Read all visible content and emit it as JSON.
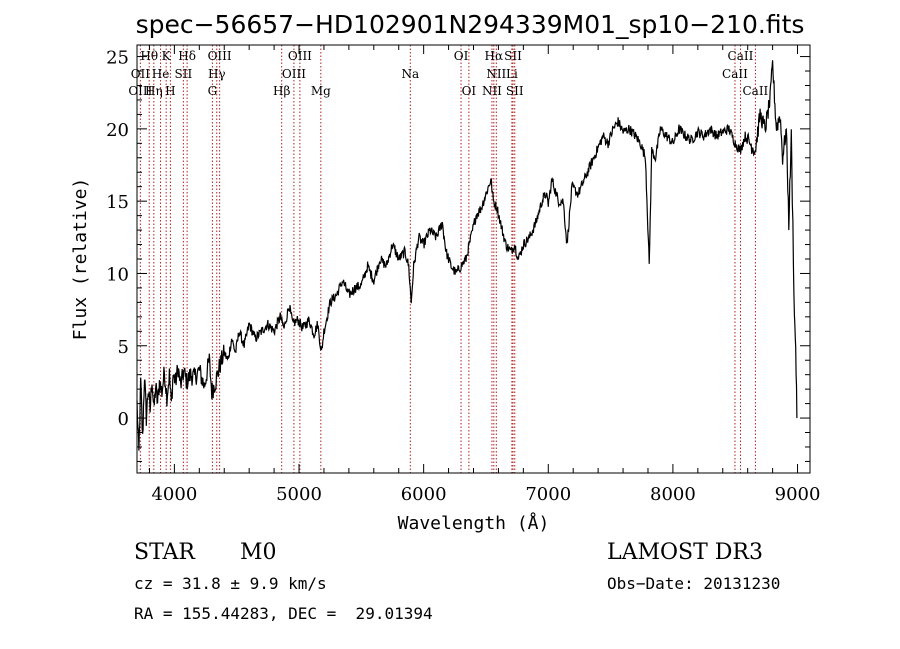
{
  "chart_data": {
    "type": "line",
    "title": "spec−56657−HD102901N294339M01_sp10−210.fits",
    "xlabel": "Wavelength (Å)",
    "ylabel": "Flux (relative)",
    "xlim": [
      3700,
      9100
    ],
    "ylim": [
      -3.8,
      25.8
    ],
    "x_ticks": [
      4000,
      5000,
      6000,
      7000,
      8000,
      9000
    ],
    "y_ticks": [
      0,
      5,
      10,
      15,
      20,
      25
    ],
    "series": [
      {
        "name": "flux",
        "points": [
          [
            3700,
            1.0
          ],
          [
            3715,
            -2.5
          ],
          [
            3730,
            2.5
          ],
          [
            3745,
            -1.5
          ],
          [
            3760,
            3.0
          ],
          [
            3775,
            0.0
          ],
          [
            3790,
            2.0
          ],
          [
            3805,
            0.5
          ],
          [
            3820,
            2.8
          ],
          [
            3835,
            0.5
          ],
          [
            3850,
            2.2
          ],
          [
            3865,
            1.0
          ],
          [
            3880,
            2.5
          ],
          [
            3900,
            1.8
          ],
          [
            3920,
            3.2
          ],
          [
            3940,
            1.5
          ],
          [
            3960,
            3.0
          ],
          [
            3975,
            1.0
          ],
          [
            3990,
            3.0
          ],
          [
            4010,
            2.5
          ],
          [
            4030,
            3.5
          ],
          [
            4050,
            2.2
          ],
          [
            4075,
            3.2
          ],
          [
            4100,
            2.5
          ],
          [
            4130,
            3.0
          ],
          [
            4160,
            2.8
          ],
          [
            4200,
            3.3
          ],
          [
            4240,
            2.2
          ],
          [
            4280,
            4.0
          ],
          [
            4300,
            1.8
          ],
          [
            4330,
            2.5
          ],
          [
            4360,
            3.5
          ],
          [
            4400,
            4.5
          ],
          [
            4430,
            4.0
          ],
          [
            4460,
            5.5
          ],
          [
            4490,
            4.5
          ],
          [
            4520,
            6.0
          ],
          [
            4560,
            5.0
          ],
          [
            4600,
            6.5
          ],
          [
            4650,
            5.5
          ],
          [
            4700,
            6.0
          ],
          [
            4750,
            6.5
          ],
          [
            4800,
            6.0
          ],
          [
            4850,
            7.0
          ],
          [
            4880,
            6.2
          ],
          [
            4920,
            7.8
          ],
          [
            4950,
            6.5
          ],
          [
            4990,
            6.8
          ],
          [
            5030,
            6.2
          ],
          [
            5080,
            6.8
          ],
          [
            5120,
            5.8
          ],
          [
            5150,
            6.5
          ],
          [
            5180,
            4.5
          ],
          [
            5200,
            6.0
          ],
          [
            5250,
            8.0
          ],
          [
            5300,
            8.5
          ],
          [
            5350,
            9.5
          ],
          [
            5400,
            8.5
          ],
          [
            5450,
            9.0
          ],
          [
            5500,
            9.2
          ],
          [
            5550,
            10.5
          ],
          [
            5600,
            9.5
          ],
          [
            5650,
            11.0
          ],
          [
            5700,
            10.5
          ],
          [
            5750,
            12.0
          ],
          [
            5800,
            11.0
          ],
          [
            5850,
            11.5
          ],
          [
            5880,
            10.5
          ],
          [
            5900,
            8.0
          ],
          [
            5920,
            10.5
          ],
          [
            5960,
            12.5
          ],
          [
            6000,
            12.0
          ],
          [
            6050,
            13.0
          ],
          [
            6100,
            12.5
          ],
          [
            6150,
            13.5
          ],
          [
            6180,
            11.5
          ],
          [
            6220,
            10.5
          ],
          [
            6260,
            10.0
          ],
          [
            6300,
            10.5
          ],
          [
            6340,
            11.0
          ],
          [
            6380,
            12.5
          ],
          [
            6420,
            14.0
          ],
          [
            6460,
            14.5
          ],
          [
            6500,
            15.5
          ],
          [
            6540,
            16.5
          ],
          [
            6560,
            15.0
          ],
          [
            6590,
            14.5
          ],
          [
            6630,
            13.0
          ],
          [
            6660,
            12.0
          ],
          [
            6700,
            11.5
          ],
          [
            6730,
            12.0
          ],
          [
            6760,
            11.0
          ],
          [
            6800,
            12.0
          ],
          [
            6850,
            12.5
          ],
          [
            6900,
            13.5
          ],
          [
            6950,
            15.0
          ],
          [
            6980,
            15.5
          ],
          [
            7000,
            14.8
          ],
          [
            7030,
            16.5
          ],
          [
            7080,
            15.0
          ],
          [
            7120,
            15.0
          ],
          [
            7150,
            12.0
          ],
          [
            7190,
            16.0
          ],
          [
            7240,
            15.5
          ],
          [
            7290,
            16.5
          ],
          [
            7340,
            17.5
          ],
          [
            7390,
            18.5
          ],
          [
            7440,
            19.5
          ],
          [
            7480,
            19.0
          ],
          [
            7520,
            20.0
          ],
          [
            7560,
            20.5
          ],
          [
            7600,
            19.8
          ],
          [
            7650,
            20.0
          ],
          [
            7700,
            19.5
          ],
          [
            7740,
            19.0
          ],
          [
            7780,
            18.0
          ],
          [
            7810,
            10.5
          ],
          [
            7830,
            18.5
          ],
          [
            7860,
            18.0
          ],
          [
            7900,
            20.0
          ],
          [
            7950,
            19.5
          ],
          [
            8000,
            19.0
          ],
          [
            8050,
            20.0
          ],
          [
            8100,
            19.5
          ],
          [
            8150,
            19.2
          ],
          [
            8200,
            19.8
          ],
          [
            8250,
            19.5
          ],
          [
            8300,
            20.0
          ],
          [
            8350,
            19.5
          ],
          [
            8400,
            19.8
          ],
          [
            8450,
            20.0
          ],
          [
            8500,
            19.0
          ],
          [
            8540,
            18.5
          ],
          [
            8580,
            19.5
          ],
          [
            8620,
            19.0
          ],
          [
            8660,
            18.5
          ],
          [
            8700,
            21.0
          ],
          [
            8740,
            20.0
          ],
          [
            8780,
            22.0
          ],
          [
            8800,
            24.5
          ],
          [
            8830,
            20.0
          ],
          [
            8860,
            21.0
          ],
          [
            8880,
            18.0
          ],
          [
            8910,
            20.0
          ],
          [
            8930,
            13.5
          ],
          [
            8950,
            19.5
          ],
          [
            8975,
            7.0
          ],
          [
            8985,
            5.0
          ],
          [
            8995,
            0.0
          ]
        ]
      }
    ],
    "emission_lines": [
      {
        "label": "Hθ",
        "wavelength": 3798,
        "row": 0
      },
      {
        "label": "K",
        "wavelength": 3934,
        "row": 0
      },
      {
        "label": "Hδ",
        "wavelength": 4102,
        "row": 0
      },
      {
        "label": "OIII",
        "wavelength": 4363,
        "row": 0
      },
      {
        "label": "OIII",
        "wavelength": 5007,
        "row": 0
      },
      {
        "label": "OI",
        "wavelength": 6300,
        "row": 0
      },
      {
        "label": "Hα",
        "wavelength": 6563,
        "row": 0
      },
      {
        "label": "SII",
        "wavelength": 6717,
        "row": 0
      },
      {
        "label": "CaII",
        "wavelength": 8542,
        "row": 0
      },
      {
        "label": "OII",
        "wavelength": 3727,
        "row": 1
      },
      {
        "label": "He",
        "wavelength": 3889,
        "row": 1
      },
      {
        "label": "SII",
        "wavelength": 4072,
        "row": 1
      },
      {
        "label": "Hγ",
        "wavelength": 4340,
        "row": 1
      },
      {
        "label": "OIII",
        "wavelength": 4959,
        "row": 1
      },
      {
        "label": "Na",
        "wavelength": 5893,
        "row": 1
      },
      {
        "label": "NII",
        "wavelength": 6583,
        "row": 1
      },
      {
        "label": "Li",
        "wavelength": 6708,
        "row": 1
      },
      {
        "label": "CaII",
        "wavelength": 8498,
        "row": 1
      },
      {
        "label": "OIII",
        "wavelength": 3727,
        "row": 2
      },
      {
        "label": "Hη",
        "wavelength": 3835,
        "row": 2
      },
      {
        "label": "H",
        "wavelength": 3968,
        "row": 2
      },
      {
        "label": "G",
        "wavelength": 4305,
        "row": 2
      },
      {
        "label": "Hβ",
        "wavelength": 4861,
        "row": 2
      },
      {
        "label": "Mg",
        "wavelength": 5175,
        "row": 2
      },
      {
        "label": "OI",
        "wavelength": 6363,
        "row": 2
      },
      {
        "label": "NII",
        "wavelength": 6548,
        "row": 2
      },
      {
        "label": "SII",
        "wavelength": 6731,
        "row": 2
      },
      {
        "label": "CaII",
        "wavelength": 8662,
        "row": 2
      }
    ]
  },
  "footer": {
    "object_class": "STAR",
    "subclass": "M0",
    "survey": "LAMOST DR3",
    "cz": "cz = 31.8 ± 9.9 km/s",
    "obs_date": "Obs−Date: 20131230",
    "coords": "RA = 155.44283, DEC =  29.01394"
  },
  "colors": {
    "line_marker": "#b22222",
    "spectrum": "#000000"
  }
}
